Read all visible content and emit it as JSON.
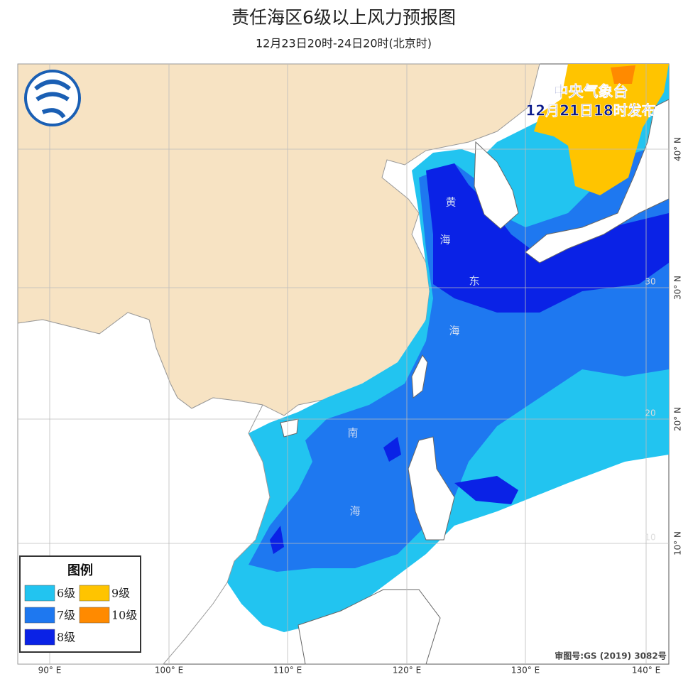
{
  "header": {
    "title": "责任海区6级以上风力预报图",
    "subtitle": "12月23日20时-24日20时(北京时)"
  },
  "issuer": {
    "name": "中央气象台",
    "time": "12月21日18时发布"
  },
  "sea_labels": [
    "黄",
    "海",
    "东",
    "海",
    "南",
    "海"
  ],
  "axes": {
    "lon_labels": [
      "90° E",
      "100° E",
      "110° E",
      "120° E",
      "130° E",
      "140° E"
    ],
    "lat_labels": [
      "40° N",
      "30° N",
      "20° N",
      "10° N"
    ],
    "inner_lat_labels": [
      "30",
      "20",
      "10"
    ]
  },
  "legend": {
    "title": "图例",
    "items": [
      {
        "label": "6级",
        "color": "#22c4f0"
      },
      {
        "label": "9级",
        "color": "#ffc400"
      },
      {
        "label": "7级",
        "color": "#1e78f0"
      },
      {
        "label": "10级",
        "color": "#ff8a00"
      },
      {
        "label": "8级",
        "color": "#0a22e6"
      }
    ]
  },
  "approval": "审图号:GS (2019) 3082号"
}
